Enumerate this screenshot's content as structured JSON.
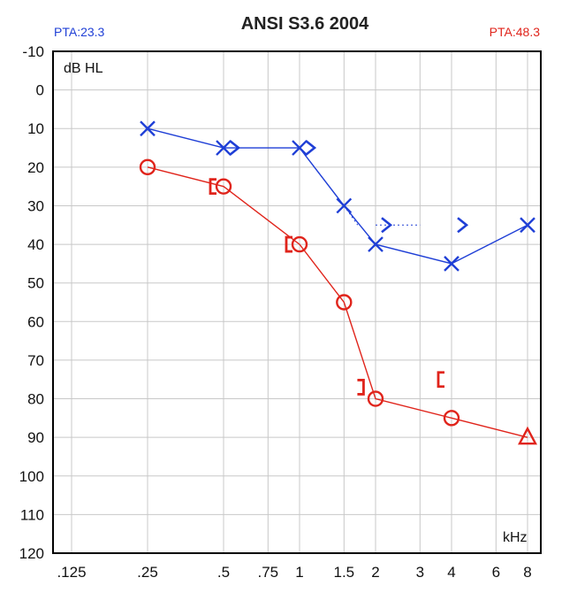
{
  "title": "ANSI S3.6 2004",
  "pta_left": "PTA:23.3",
  "pta_right": "PTA:48.3",
  "colors": {
    "left_ear": "#1f3fd6",
    "right_ear": "#e0241b",
    "grid": "#c8c8c8",
    "frame": "#000000"
  },
  "chart_data": {
    "type": "line",
    "title": "ANSI S3.6 2004",
    "ylabel": "dB HL",
    "xlabel": "kHz",
    "y_reversed": true,
    "ylim": [
      -10,
      120
    ],
    "y_ticks": [
      "-10",
      "0",
      "10",
      "20",
      "30",
      "40",
      "50",
      "60",
      "70",
      "80",
      "90",
      "100",
      "110",
      "120"
    ],
    "x_ticks": [
      ".125",
      ".25",
      ".5",
      ".75",
      "1",
      "1.5",
      "2",
      "3",
      "4",
      "6",
      "8"
    ],
    "x_scale": "log",
    "grid": true,
    "series": [
      {
        "ear": "left",
        "color": "#1f3fd6",
        "symbol": "X",
        "x": [
          0.25,
          0.5,
          1,
          1.5,
          2,
          4,
          8
        ],
        "y": [
          10,
          15,
          15,
          30,
          40,
          45,
          35
        ]
      },
      {
        "ear": "right",
        "color": "#e0241b",
        "symbol": "O",
        "x": [
          0.25,
          0.5,
          1,
          1.5,
          2,
          4,
          8
        ],
        "y": [
          20,
          25,
          40,
          55,
          80,
          85,
          90
        ],
        "last_symbol": "triangle"
      },
      {
        "ear": "left",
        "kind": "bone",
        "color": "#1f3fd6",
        "symbol": ">",
        "x": [
          0.5,
          1,
          2,
          4
        ],
        "y": [
          15,
          15,
          35,
          35
        ]
      },
      {
        "ear": "right",
        "kind": "bone",
        "color": "#e0241b",
        "symbol": "[",
        "x": [
          0.5,
          1,
          4
        ],
        "y": [
          25,
          40,
          75
        ]
      }
    ],
    "annotations": [
      {
        "kind": "dotted",
        "color": "#1f3fd6",
        "x": [
          1,
          1.5
        ],
        "y": [
          15,
          30
        ]
      },
      {
        "kind": "dotted",
        "color": "#1f3fd6",
        "x": [
          1.5,
          1.7
        ],
        "y": [
          30,
          35
        ]
      },
      {
        "kind": "dotted",
        "color": "#1f3fd6",
        "x": [
          2,
          3
        ],
        "y": [
          35,
          35
        ]
      },
      {
        "kind": "marker",
        "color": "#e0241b",
        "symbol": "]",
        "x": 1.75,
        "y": 77
      }
    ]
  }
}
